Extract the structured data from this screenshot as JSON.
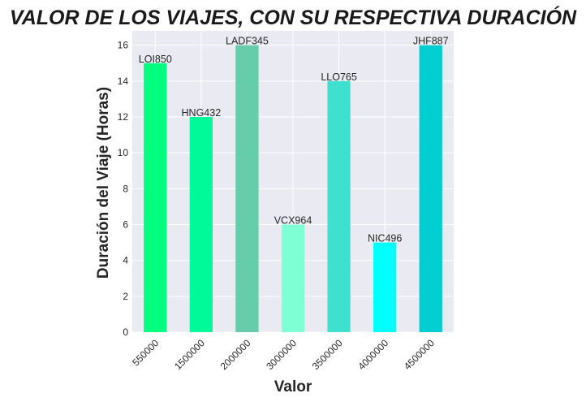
{
  "chart_data": {
    "type": "bar",
    "title": "VALOR DE LOS VIAJES, CON SU RESPECTIVA DURACIÓN",
    "xlabel": "Valor",
    "ylabel": "Duración del Viaje (Horas)",
    "categories": [
      "550000",
      "1500000",
      "2000000",
      "3000000",
      "3500000",
      "4000000",
      "4500000"
    ],
    "values": [
      15,
      12,
      16,
      6,
      14,
      5,
      16
    ],
    "data_labels": [
      "LOI850",
      "HNG432",
      "LADF345",
      "VCX964",
      "LLO765",
      "NIC496",
      "JHF887"
    ],
    "colors": [
      "#00ff7f",
      "#00fa9a",
      "#66cdaa",
      "#7fffd4",
      "#40e0d0",
      "#00ffff",
      "#00ced1"
    ],
    "ylim": [
      0,
      16.8
    ],
    "yticks": [
      0,
      2,
      4,
      6,
      8,
      10,
      12,
      14,
      16
    ],
    "grid": true,
    "background": "#eaeaf2"
  }
}
